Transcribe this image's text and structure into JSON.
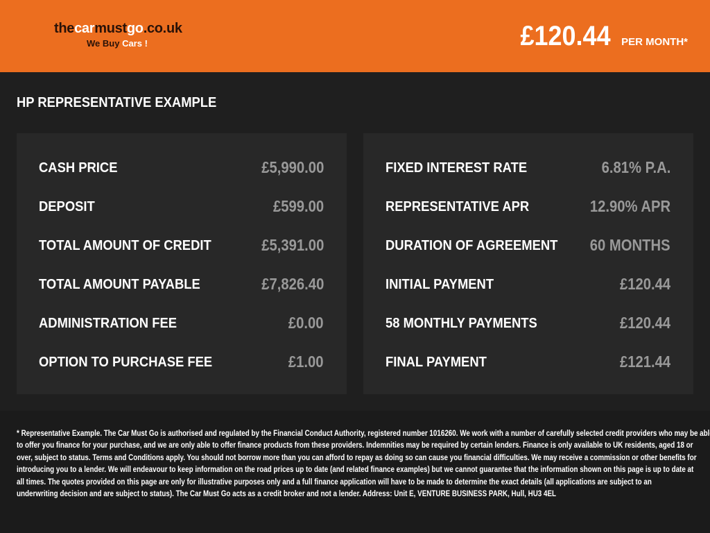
{
  "header": {
    "logo": {
      "part1": "the",
      "part2": "car",
      "part3": "must",
      "part4": "go",
      "part5": ".co.uk",
      "tag1": "We Buy ",
      "tag2": "Cars !"
    },
    "price": "£120.44",
    "per_month": "PER MONTH*"
  },
  "title": "HP REPRESENTATIVE EXAMPLE",
  "left_panel": [
    {
      "label": "CASH PRICE",
      "value": "£5,990.00"
    },
    {
      "label": "DEPOSIT",
      "value": "£599.00"
    },
    {
      "label": "TOTAL AMOUNT OF CREDIT",
      "value": "£5,391.00"
    },
    {
      "label": "TOTAL AMOUNT PAYABLE",
      "value": "£7,826.40"
    },
    {
      "label": "ADMINISTRATION FEE",
      "value": "£0.00"
    },
    {
      "label": "OPTION TO PURCHASE FEE",
      "value": "£1.00"
    }
  ],
  "right_panel": [
    {
      "label": "FIXED INTEREST RATE",
      "value": "6.81% P.A."
    },
    {
      "label": "REPRESENTATIVE APR",
      "value": "12.90% APR"
    },
    {
      "label": "DURATION OF AGREEMENT",
      "value": "60 MONTHS"
    },
    {
      "label": "INITIAL PAYMENT",
      "value": "£120.44"
    },
    {
      "label": "58 MONTHLY PAYMENTS",
      "value": "£120.44"
    },
    {
      "label": "FINAL PAYMENT",
      "value": "£121.44"
    }
  ],
  "disclaimer_lines": [
    "* Representative Example. The Car Must Go is authorised and regulated by the Financial Conduct Authority, registered number 1016260. We work with a number of carefully selected credit providers who may be able",
    "to offer you finance for your purchase, and we are only able to offer finance products from these providers. Indemnities may be required by certain lenders. Finance is only available to UK residents, aged 18 or",
    "over, subject to status. Terms and Conditions apply. You should not borrow more than you can afford to repay as doing so can cause you financial difficulties. We may receive a commission or other benefits for",
    "introducing you to a lender. We will endeavour to keep information on the road prices up to date (and related finance examples) but we cannot guarantee that the information shown on this page is up to date at",
    "all times. The quotes provided on this page are only for illustrative purposes only and a full finance application will have to be made to determine the exact details (all applications are subject to an",
    "underwriting decision and are subject to status). The Car Must Go acts as a credit broker and not a lender. Address: Unit E, VENTURE BUSINESS PARK, Hull, HU3 4EL"
  ],
  "colors": {
    "brand": "#ec6e1f",
    "background": "#1f1f1f",
    "panel": "#282828",
    "value": "#999999"
  }
}
